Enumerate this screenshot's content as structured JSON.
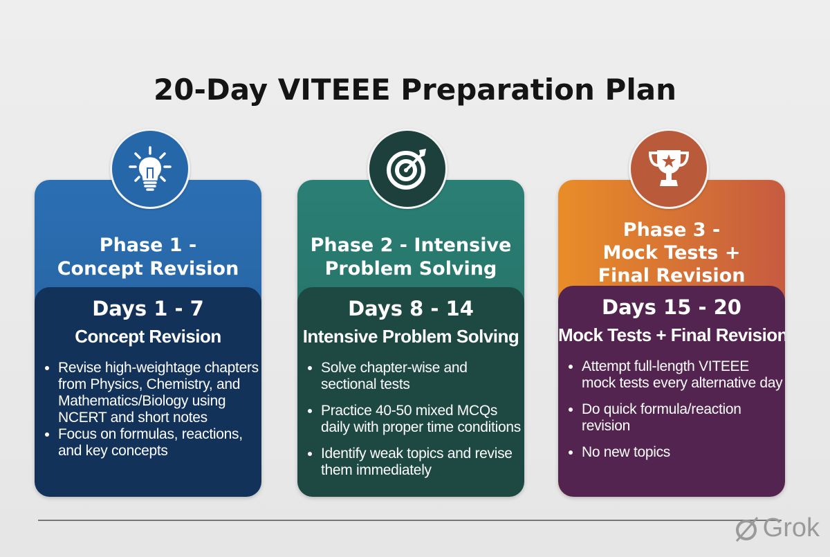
{
  "title": "20-Day VITEEE Preparation Plan",
  "phases": [
    {
      "icon": "lightbulb-icon",
      "color": "#2b6fb3",
      "panel_color": "#13325a",
      "title_line1": "Phase 1 -",
      "title_line2": "Concept Revision",
      "title_line3": "",
      "days": "Days 1 - 7",
      "subtitle": "Concept Revision",
      "bullets": [
        "Revise high-weightage chapters from Physics, Chemistry, and Mathematics/Biology using NCERT and short notes",
        "Focus on formulas, reactions, and key concepts"
      ]
    },
    {
      "icon": "target-icon",
      "color": "#2a7f74",
      "panel_color": "#1e4943",
      "title_line1": "Phase 2 - Intensive",
      "title_line2": "Problem Solving",
      "title_line3": "",
      "days": "Days 8 - 14",
      "subtitle": "Intensive Problem Solving",
      "bullets": [
        "Solve chapter-wise and sectional tests",
        "Practice 40-50 mixed MCQs daily with proper time conditions",
        "Identify weak topics and revise them immediately"
      ]
    },
    {
      "icon": "trophy-icon",
      "color": "#e98d28",
      "panel_color": "#53244f",
      "title_line1": "Phase 3 -",
      "title_line2": "Mock Tests +",
      "title_line3": "Final Revision",
      "days": "Days 15 - 20",
      "subtitle": "Mock Tests + Final Revision",
      "bullets": [
        "Attempt full-length VITEEE mock tests every alternative day",
        "Do quick formula/reaction revision",
        "No new topics"
      ]
    }
  ],
  "watermark": "Grok"
}
